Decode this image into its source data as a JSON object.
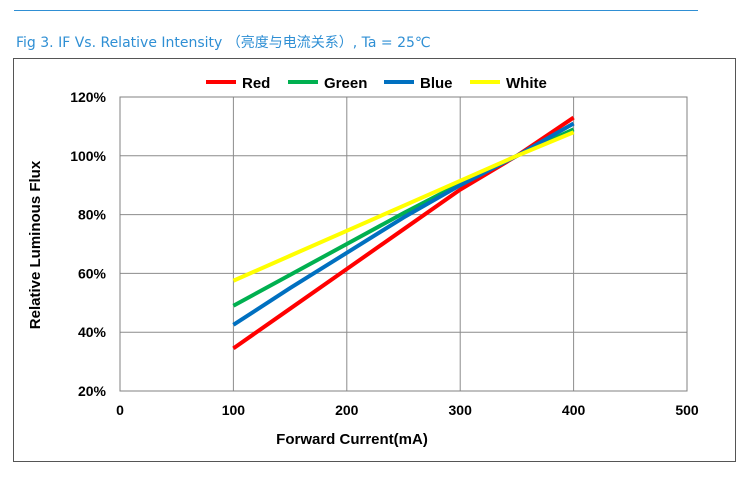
{
  "header": {
    "figure_title": "Fig 3. IF Vs. Relative Intensity （亮度与电流关系）, Ta = 25℃"
  },
  "chart_data": {
    "type": "line",
    "title": "",
    "xlabel": "Forward Current(mA)",
    "ylabel": "Relative Luminous Flux",
    "xlim": [
      0,
      500
    ],
    "ylim": [
      20,
      120
    ],
    "x_ticks": [
      0,
      100,
      200,
      300,
      400,
      500
    ],
    "y_ticks": [
      20,
      40,
      60,
      80,
      100,
      120
    ],
    "x_tick_labels": [
      "0",
      "100",
      "200",
      "300",
      "400",
      "500"
    ],
    "y_tick_labels": [
      "20%",
      "40%",
      "60%",
      "80%",
      "100%",
      "120%"
    ],
    "grid": true,
    "legend_position": "top",
    "x": [
      100,
      150,
      200,
      250,
      300,
      350,
      400
    ],
    "series": [
      {
        "name": "Red",
        "color": "#ff0000",
        "values": [
          34.5,
          48,
          61.5,
          75,
          88.5,
          100,
          113
        ]
      },
      {
        "name": "Green",
        "color": "#00b050",
        "values": [
          49,
          59.5,
          70,
          80.5,
          90.5,
          100,
          109
        ]
      },
      {
        "name": "Blue",
        "color": "#0070c0",
        "values": [
          42.5,
          55,
          67,
          79,
          90,
          100,
          111
        ]
      },
      {
        "name": "White",
        "color": "#ffff00",
        "values": [
          57.5,
          66,
          74.5,
          83,
          91.5,
          100,
          108
        ]
      }
    ]
  }
}
